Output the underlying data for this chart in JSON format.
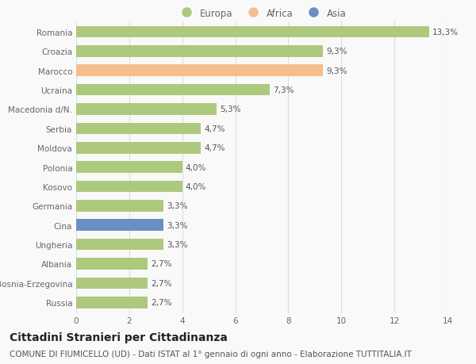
{
  "countries": [
    "Romania",
    "Croazia",
    "Marocco",
    "Ucraina",
    "Macedonia d/N.",
    "Serbia",
    "Moldova",
    "Polonia",
    "Kosovo",
    "Germania",
    "Cina",
    "Ungheria",
    "Albania",
    "Bosnia-Erzegovina",
    "Russia"
  ],
  "values": [
    13.3,
    9.3,
    9.3,
    7.3,
    5.3,
    4.7,
    4.7,
    4.0,
    4.0,
    3.3,
    3.3,
    3.3,
    2.7,
    2.7,
    2.7
  ],
  "labels": [
    "13,3%",
    "9,3%",
    "9,3%",
    "7,3%",
    "5,3%",
    "4,7%",
    "4,7%",
    "4,0%",
    "4,0%",
    "3,3%",
    "3,3%",
    "3,3%",
    "2,7%",
    "2,7%",
    "2,7%"
  ],
  "continents": [
    "Europa",
    "Europa",
    "Africa",
    "Europa",
    "Europa",
    "Europa",
    "Europa",
    "Europa",
    "Europa",
    "Europa",
    "Asia",
    "Europa",
    "Europa",
    "Europa",
    "Europa"
  ],
  "colors": {
    "Europa": "#adc97d",
    "Africa": "#f5be8e",
    "Asia": "#6b8ec4"
  },
  "title": "Cittadini Stranieri per Cittadinanza",
  "subtitle": "COMUNE DI FIUMICELLO (UD) - Dati ISTAT al 1° gennaio di ogni anno - Elaborazione TUTTITALIA.IT",
  "xlim": [
    0,
    14
  ],
  "xticks": [
    0,
    2,
    4,
    6,
    8,
    10,
    12,
    14
  ],
  "background_color": "#f9f9f9",
  "bar_height": 0.6,
  "label_fontsize": 7.5,
  "tick_fontsize": 7.5,
  "legend_fontsize": 8.5,
  "title_fontsize": 10,
  "subtitle_fontsize": 7.5
}
